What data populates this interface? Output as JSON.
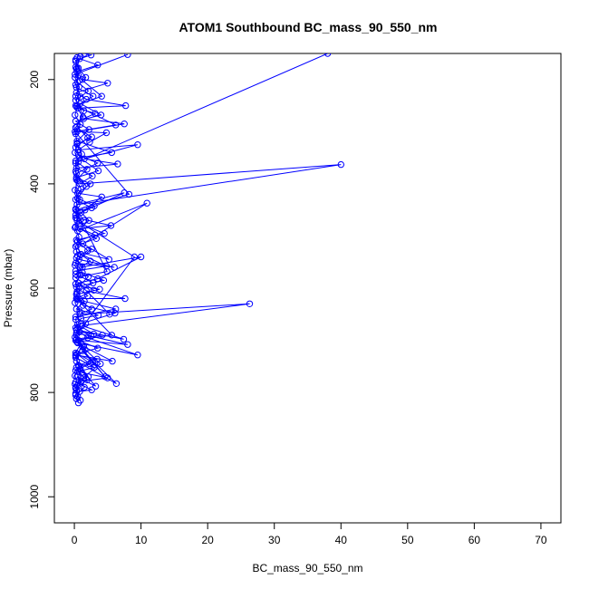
{
  "chart_data": {
    "type": "line",
    "title": "ATOM1 Southbound BC_mass_90_550_nm",
    "xlabel": "BC_mass_90_550_nm",
    "ylabel": "Pressure (mbar)",
    "xlim": [
      -3,
      73
    ],
    "ylim": [
      1050,
      150
    ],
    "x_ticks": [
      0,
      10,
      20,
      30,
      40,
      50,
      60,
      70
    ],
    "y_ticks": [
      200,
      400,
      600,
      800,
      1000
    ],
    "grid": false,
    "y_reversed": true,
    "marker": "open-circle",
    "colors": {
      "series": "#0000ff",
      "axis": "#000000"
    },
    "series": [
      {
        "values": [
          [
            0.6,
            820
          ],
          [
            0.2,
            805
          ],
          [
            1.5,
            790
          ],
          [
            0.4,
            770
          ],
          [
            3.2,
            788
          ],
          [
            0.9,
            755
          ],
          [
            2.1,
            770
          ],
          [
            0.3,
            740
          ],
          [
            6.3,
            783
          ],
          [
            1.2,
            720
          ],
          [
            4.6,
            770
          ],
          [
            0.5,
            705
          ],
          [
            9.5,
            728
          ],
          [
            2.0,
            695
          ],
          [
            0.3,
            680
          ],
          [
            7.4,
            698
          ],
          [
            1.1,
            672
          ],
          [
            26.3,
            630
          ],
          [
            0.8,
            650
          ],
          [
            2.6,
            640
          ],
          [
            0.4,
            620
          ],
          [
            7.6,
            620
          ],
          [
            1.8,
            605
          ],
          [
            5.3,
            650
          ],
          [
            0.6,
            590
          ],
          [
            3.5,
            582
          ],
          [
            10.0,
            540
          ],
          [
            0.9,
            560
          ],
          [
            2.4,
            548
          ],
          [
            0.3,
            530
          ],
          [
            5.2,
            545
          ],
          [
            1.3,
            515
          ],
          [
            10.9,
            437
          ],
          [
            0.5,
            490
          ],
          [
            2.2,
            470
          ],
          [
            1.0,
            455
          ],
          [
            7.5,
            417
          ],
          [
            0.4,
            440
          ],
          [
            40.0,
            363
          ],
          [
            0.8,
            400
          ],
          [
            2.7,
            385
          ],
          [
            0.3,
            370
          ],
          [
            6.5,
            362
          ],
          [
            1.5,
            352
          ],
          [
            9.5,
            325
          ],
          [
            0.6,
            335
          ],
          [
            2.3,
            320
          ],
          [
            4.8,
            302
          ],
          [
            0.4,
            300
          ],
          [
            7.5,
            285
          ],
          [
            1.4,
            275
          ],
          [
            3.1,
            265
          ],
          [
            0.5,
            255
          ],
          [
            7.7,
            250
          ],
          [
            1.8,
            238
          ],
          [
            0.3,
            225
          ],
          [
            5.0,
            207
          ],
          [
            1.2,
            200
          ],
          [
            0.4,
            185
          ],
          [
            3.5,
            172
          ],
          [
            0.8,
            160
          ],
          [
            2.5,
            153
          ],
          [
            1.5,
            150
          ]
        ]
      },
      {
        "values": [
          [
            0.3,
            812
          ],
          [
            0.8,
            798
          ],
          [
            2.6,
            795
          ],
          [
            0.2,
            780
          ],
          [
            5.0,
            772
          ],
          [
            1.1,
            762
          ],
          [
            0.6,
            748
          ],
          [
            3.4,
            736
          ],
          [
            0.2,
            728
          ],
          [
            5.7,
            740
          ],
          [
            1.4,
            712
          ],
          [
            0.3,
            698
          ],
          [
            4.2,
            690
          ],
          [
            0.8,
            684
          ],
          [
            2.9,
            688
          ],
          [
            0.5,
            670
          ],
          [
            6.1,
            648
          ],
          [
            1.3,
            633
          ],
          [
            0.3,
            612
          ],
          [
            3.8,
            602
          ],
          [
            0.7,
            596
          ],
          [
            2.1,
            578
          ],
          [
            0.2,
            567
          ],
          [
            4.8,
            558
          ],
          [
            1.0,
            535
          ],
          [
            0.4,
            518
          ],
          [
            3.3,
            505
          ],
          [
            0.9,
            486
          ],
          [
            5.5,
            480
          ],
          [
            0.2,
            465
          ],
          [
            1.6,
            450
          ],
          [
            4.1,
            425
          ],
          [
            0.5,
            418
          ],
          [
            2.4,
            400
          ],
          [
            0.3,
            388
          ],
          [
            3.6,
            375
          ],
          [
            0.8,
            350
          ],
          [
            5.6,
            340
          ],
          [
            0.4,
            318
          ],
          [
            2.2,
            296
          ],
          [
            0.2,
            280
          ],
          [
            4.0,
            268
          ],
          [
            0.9,
            246
          ],
          [
            2.8,
            232
          ],
          [
            0.3,
            215
          ],
          [
            1.7,
            196
          ],
          [
            0.6,
            178
          ],
          [
            0.2,
            165
          ]
        ]
      },
      {
        "values": [
          [
            0.9,
            815
          ],
          [
            0.2,
            792
          ],
          [
            1.9,
            776
          ],
          [
            0.5,
            760
          ],
          [
            3.0,
            752
          ],
          [
            0.2,
            733
          ],
          [
            1.6,
            718
          ],
          [
            0.4,
            703
          ],
          [
            2.5,
            692
          ],
          [
            0.2,
            676
          ],
          [
            1.0,
            658
          ],
          [
            3.6,
            652
          ],
          [
            0.3,
            640
          ],
          [
            1.5,
            625
          ],
          [
            0.4,
            607
          ],
          [
            2.8,
            590
          ],
          [
            0.2,
            573
          ],
          [
            1.2,
            560
          ],
          [
            0.3,
            542
          ],
          [
            2.0,
            528
          ],
          [
            0.5,
            510
          ],
          [
            3.1,
            498
          ],
          [
            0.2,
            482
          ],
          [
            1.4,
            470
          ],
          [
            0.4,
            452
          ],
          [
            2.6,
            446
          ],
          [
            0.2,
            430
          ],
          [
            1.0,
            410
          ],
          [
            0.3,
            392
          ],
          [
            1.9,
            372
          ],
          [
            0.2,
            356
          ],
          [
            1.1,
            343
          ],
          [
            0.4,
            324
          ],
          [
            2.6,
            310
          ],
          [
            0.2,
            292
          ],
          [
            1.3,
            272
          ],
          [
            0.3,
            252
          ],
          [
            0.9,
            233
          ],
          [
            0.2,
            210
          ],
          [
            0.6,
            192
          ],
          [
            0.2,
            176
          ],
          [
            0.4,
            158
          ]
        ]
      },
      {
        "values": [
          [
            0.2,
            802
          ],
          [
            0.5,
            786
          ],
          [
            0.1,
            768
          ],
          [
            0.7,
            750
          ],
          [
            0.2,
            730
          ],
          [
            1.2,
            712
          ],
          [
            0.1,
            694
          ],
          [
            0.5,
            676
          ],
          [
            0.2,
            660
          ],
          [
            0.8,
            645
          ],
          [
            0.1,
            628
          ],
          [
            0.4,
            610
          ],
          [
            0.2,
            592
          ],
          [
            0.9,
            575
          ],
          [
            0.1,
            556
          ],
          [
            0.5,
            538
          ],
          [
            0.2,
            520
          ],
          [
            0.7,
            502
          ],
          [
            0.1,
            484
          ],
          [
            0.4,
            466
          ],
          [
            0.2,
            448
          ],
          [
            0.8,
            430
          ],
          [
            0.1,
            412
          ],
          [
            0.5,
            394
          ],
          [
            0.2,
            376
          ],
          [
            0.6,
            358
          ],
          [
            0.1,
            340
          ],
          [
            0.4,
            322
          ],
          [
            0.2,
            304
          ],
          [
            0.9,
            286
          ],
          [
            0.1,
            268
          ],
          [
            0.5,
            250
          ],
          [
            0.2,
            232
          ],
          [
            0.7,
            214
          ],
          [
            0.1,
            196
          ],
          [
            0.4,
            178
          ],
          [
            0.2,
            162
          ]
        ]
      },
      {
        "values": [
          [
            0.3,
            796
          ],
          [
            1.0,
            780
          ],
          [
            0.2,
            758
          ],
          [
            2.3,
            745
          ],
          [
            0.4,
            726
          ],
          [
            3.5,
            715
          ],
          [
            0.6,
            700
          ],
          [
            8.0,
            708
          ],
          [
            0.3,
            686
          ],
          [
            1.7,
            668
          ],
          [
            0.2,
            655
          ],
          [
            6.2,
            640
          ],
          [
            0.5,
            622
          ],
          [
            2.0,
            615
          ],
          [
            0.3,
            598
          ],
          [
            4.4,
            585
          ],
          [
            1.2,
            570
          ],
          [
            0.2,
            552
          ],
          [
            6.0,
            560
          ],
          [
            0.7,
            545
          ],
          [
            2.6,
            525
          ],
          [
            0.3,
            508
          ],
          [
            4.5,
            495
          ],
          [
            0.8,
            476
          ],
          [
            0.2,
            460
          ],
          [
            3.0,
            442
          ],
          [
            0.5,
            428
          ],
          [
            1.8,
            405
          ],
          [
            0.3,
            380
          ],
          [
            3.5,
            360
          ],
          [
            0.6,
            345
          ],
          [
            0.2,
            330
          ],
          [
            2.0,
            312
          ],
          [
            0.4,
            290
          ],
          [
            1.4,
            260
          ],
          [
            0.2,
            240
          ],
          [
            2.1,
            222
          ],
          [
            0.5,
            205
          ],
          [
            0.3,
            180
          ],
          [
            0.9,
            156
          ]
        ]
      },
      {
        "values": [
          [
            0.5,
            808
          ],
          [
            0.2,
            790
          ],
          [
            1.4,
            772
          ],
          [
            0.3,
            752
          ],
          [
            2.8,
            742
          ],
          [
            0.2,
            724
          ],
          [
            1.0,
            706
          ],
          [
            0.3,
            690
          ],
          [
            9.0,
            540
          ],
          [
            0.4,
            470
          ],
          [
            0.2,
            360
          ],
          [
            38.0,
            150
          ]
        ]
      },
      {
        "values": [
          [
            0.1,
            784
          ],
          [
            3.9,
            745
          ],
          [
            0.2,
            700
          ],
          [
            5.6,
            690
          ],
          [
            0.3,
            620
          ],
          [
            2.9,
            604
          ],
          [
            0.2,
            580
          ],
          [
            4.9,
            568
          ],
          [
            0.2,
            450
          ],
          [
            8.2,
            420
          ],
          [
            0.1,
            300
          ],
          [
            6.2,
            287
          ],
          [
            0.2,
            250
          ],
          [
            4.1,
            232
          ],
          [
            0.1,
            190
          ],
          [
            8.0,
            152
          ]
        ]
      }
    ]
  }
}
